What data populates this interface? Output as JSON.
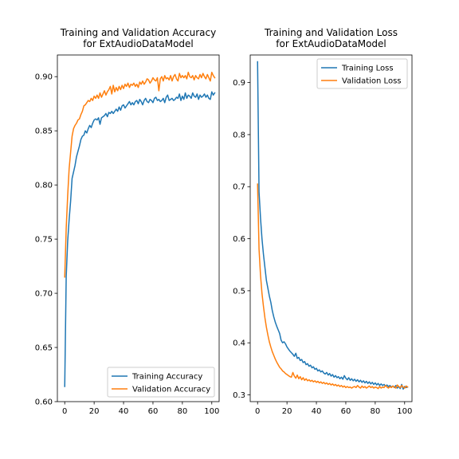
{
  "figure": {
    "background": "#ffffff"
  },
  "chart_data": [
    {
      "type": "line",
      "title": "Training and Validation Accuracy\nfor ExtAudioDataModel",
      "xlabel": "",
      "ylabel": "",
      "xlim": [
        -5,
        105
      ],
      "ylim": [
        0.6,
        0.92
      ],
      "xticks": [
        0,
        20,
        40,
        60,
        80,
        100
      ],
      "yticks": [
        0.6,
        0.65,
        0.7,
        0.75,
        0.8,
        0.85,
        0.9
      ],
      "ytick_labels": [
        "0.60",
        "0.65",
        "0.70",
        "0.75",
        "0.80",
        "0.85",
        "0.90"
      ],
      "grid": false,
      "legend": "lower right",
      "series": [
        {
          "name": "Training Accuracy",
          "color": "#1f77b4",
          "values": [
            0.614,
            0.715,
            0.748,
            0.768,
            0.785,
            0.806,
            0.812,
            0.818,
            0.826,
            0.831,
            0.836,
            0.842,
            0.845,
            0.846,
            0.85,
            0.848,
            0.852,
            0.855,
            0.853,
            0.857,
            0.86,
            0.861,
            0.86,
            0.862,
            0.856,
            0.862,
            0.863,
            0.864,
            0.866,
            0.863,
            0.867,
            0.866,
            0.868,
            0.866,
            0.868,
            0.87,
            0.868,
            0.872,
            0.869,
            0.873,
            0.874,
            0.871,
            0.873,
            0.875,
            0.877,
            0.874,
            0.876,
            0.874,
            0.877,
            0.878,
            0.875,
            0.879,
            0.877,
            0.874,
            0.878,
            0.88,
            0.877,
            0.876,
            0.879,
            0.878,
            0.876,
            0.88,
            0.881,
            0.878,
            0.879,
            0.877,
            0.878,
            0.88,
            0.876,
            0.881,
            0.883,
            0.878,
            0.879,
            0.88,
            0.878,
            0.879,
            0.881,
            0.88,
            0.884,
            0.878,
            0.882,
            0.879,
            0.885,
            0.88,
            0.883,
            0.882,
            0.88,
            0.885,
            0.882,
            0.881,
            0.884,
            0.879,
            0.883,
            0.881,
            0.882,
            0.884,
            0.881,
            0.883,
            0.88,
            0.879,
            0.886,
            0.883,
            0.885
          ]
        },
        {
          "name": "Validation Accuracy",
          "color": "#ff7f0e",
          "values": [
            0.715,
            0.76,
            0.79,
            0.815,
            0.83,
            0.845,
            0.852,
            0.855,
            0.857,
            0.86,
            0.861,
            0.865,
            0.868,
            0.873,
            0.874,
            0.876,
            0.878,
            0.877,
            0.88,
            0.878,
            0.882,
            0.88,
            0.883,
            0.88,
            0.885,
            0.881,
            0.884,
            0.887,
            0.883,
            0.886,
            0.888,
            0.891,
            0.884,
            0.892,
            0.886,
            0.89,
            0.887,
            0.891,
            0.888,
            0.892,
            0.889,
            0.893,
            0.891,
            0.894,
            0.89,
            0.893,
            0.892,
            0.894,
            0.891,
            0.893,
            0.89,
            0.895,
            0.893,
            0.896,
            0.893,
            0.895,
            0.898,
            0.897,
            0.894,
            0.896,
            0.899,
            0.897,
            0.896,
            0.899,
            0.887,
            0.898,
            0.9,
            0.896,
            0.901,
            0.898,
            0.899,
            0.897,
            0.901,
            0.896,
            0.9,
            0.902,
            0.898,
            0.896,
            0.903,
            0.899,
            0.901,
            0.899,
            0.901,
            0.898,
            0.904,
            0.9,
            0.899,
            0.901,
            0.897,
            0.901,
            0.899,
            0.898,
            0.902,
            0.899,
            0.903,
            0.9,
            0.898,
            0.902,
            0.899,
            0.896,
            0.904,
            0.901,
            0.899
          ]
        }
      ]
    },
    {
      "type": "line",
      "title": "Training and Validation Loss\nfor ExtAudioDataModel",
      "xlabel": "",
      "ylabel": "",
      "xlim": [
        -5,
        105
      ],
      "ylim": [
        0.287,
        0.953
      ],
      "xticks": [
        0,
        20,
        40,
        60,
        80,
        100
      ],
      "yticks": [
        0.3,
        0.4,
        0.5,
        0.6,
        0.7,
        0.8,
        0.9
      ],
      "ytick_labels": [
        "0.3",
        "0.4",
        "0.5",
        "0.6",
        "0.7",
        "0.8",
        "0.9"
      ],
      "grid": false,
      "legend": "upper right",
      "series": [
        {
          "name": "Training Loss",
          "color": "#1f77b4",
          "values": [
            0.94,
            0.69,
            0.64,
            0.6,
            0.57,
            0.545,
            0.52,
            0.505,
            0.49,
            0.478,
            0.462,
            0.45,
            0.44,
            0.432,
            0.425,
            0.418,
            0.405,
            0.4,
            0.402,
            0.398,
            0.392,
            0.388,
            0.384,
            0.381,
            0.378,
            0.374,
            0.38,
            0.37,
            0.372,
            0.366,
            0.368,
            0.362,
            0.364,
            0.358,
            0.36,
            0.355,
            0.357,
            0.352,
            0.354,
            0.349,
            0.351,
            0.346,
            0.348,
            0.344,
            0.346,
            0.342,
            0.34,
            0.343,
            0.338,
            0.341,
            0.336,
            0.339,
            0.334,
            0.337,
            0.333,
            0.335,
            0.331,
            0.334,
            0.33,
            0.337,
            0.332,
            0.329,
            0.333,
            0.328,
            0.331,
            0.327,
            0.33,
            0.326,
            0.329,
            0.325,
            0.328,
            0.324,
            0.327,
            0.323,
            0.326,
            0.322,
            0.325,
            0.321,
            0.324,
            0.32,
            0.323,
            0.319,
            0.322,
            0.318,
            0.321,
            0.318,
            0.32,
            0.317,
            0.319,
            0.316,
            0.318,
            0.315,
            0.317,
            0.314,
            0.318,
            0.313,
            0.316,
            0.312,
            0.32,
            0.311,
            0.316,
            0.314,
            0.315
          ]
        },
        {
          "name": "Validation Loss",
          "color": "#ff7f0e",
          "values": [
            0.705,
            0.58,
            0.53,
            0.495,
            0.47,
            0.448,
            0.43,
            0.415,
            0.402,
            0.392,
            0.383,
            0.376,
            0.369,
            0.363,
            0.358,
            0.353,
            0.35,
            0.346,
            0.344,
            0.341,
            0.339,
            0.337,
            0.335,
            0.334,
            0.343,
            0.336,
            0.332,
            0.338,
            0.331,
            0.335,
            0.329,
            0.333,
            0.328,
            0.331,
            0.327,
            0.329,
            0.326,
            0.328,
            0.325,
            0.327,
            0.324,
            0.326,
            0.323,
            0.325,
            0.322,
            0.324,
            0.321,
            0.323,
            0.32,
            0.322,
            0.319,
            0.321,
            0.318,
            0.32,
            0.317,
            0.319,
            0.316,
            0.318,
            0.315,
            0.317,
            0.314,
            0.316,
            0.314,
            0.315,
            0.313,
            0.315,
            0.316,
            0.314,
            0.318,
            0.315,
            0.313,
            0.317,
            0.314,
            0.316,
            0.313,
            0.315,
            0.317,
            0.314,
            0.316,
            0.313,
            0.315,
            0.314,
            0.312,
            0.316,
            0.313,
            0.315,
            0.314,
            0.318,
            0.315,
            0.313,
            0.316,
            0.314,
            0.317,
            0.315,
            0.313,
            0.319,
            0.316,
            0.314,
            0.318,
            0.315,
            0.313,
            0.317,
            0.315
          ]
        }
      ]
    }
  ]
}
